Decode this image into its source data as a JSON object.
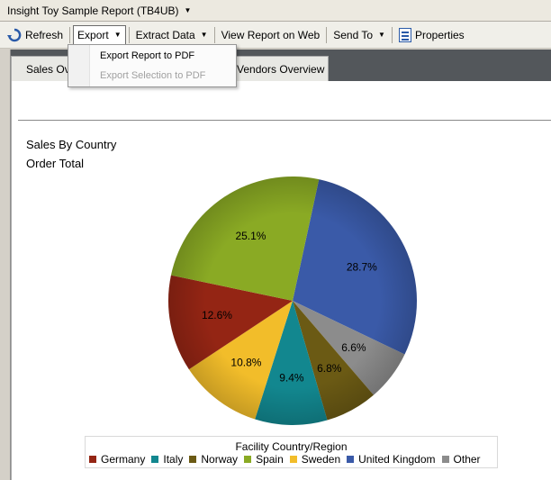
{
  "window": {
    "title": "Insight Toy Sample Report (TB4UB)"
  },
  "toolbar": {
    "refresh": "Refresh",
    "export": "Export",
    "extract_data": "Extract Data",
    "view_on_web": "View Report on Web",
    "send_to": "Send To",
    "properties": "Properties"
  },
  "export_menu": {
    "items": [
      {
        "label": "Export Report to PDF",
        "enabled": true
      },
      {
        "label": "Export Selection to PDF",
        "enabled": false
      }
    ]
  },
  "tabs": [
    {
      "label": "Sales Ov",
      "selected": true
    },
    {
      "label": "Vendors Overview",
      "selected": false
    }
  ],
  "report": {
    "chart_title": "Sales By Country",
    "chart_subtitle": "Order Total"
  },
  "chart_data": {
    "type": "pie",
    "title": "Sales By Country",
    "subtitle": "Order Total",
    "legend_title": "Facility Country/Region",
    "legend_position": "bottom",
    "slices": [
      {
        "name": "United Kingdom",
        "value": 28.7,
        "label": "28.7%",
        "color": "#3a5aa8"
      },
      {
        "name": "Other",
        "value": 6.6,
        "label": "6.6%",
        "color": "#8c8c8c"
      },
      {
        "name": "Norway",
        "value": 6.8,
        "label": "6.8%",
        "color": "#6b5a14"
      },
      {
        "name": "Italy",
        "value": 9.4,
        "label": "9.4%",
        "color": "#12878f"
      },
      {
        "name": "Sweden",
        "value": 10.8,
        "label": "10.8%",
        "color": "#f2bd2a"
      },
      {
        "name": "Germany",
        "value": 12.6,
        "label": "12.6%",
        "color": "#942514"
      },
      {
        "name": "Spain",
        "value": 25.1,
        "label": "25.1%",
        "color": "#8aaa24"
      }
    ],
    "legend_order": [
      "Germany",
      "Italy",
      "Norway",
      "Spain",
      "Sweden",
      "United Kingdom",
      "Other"
    ]
  }
}
